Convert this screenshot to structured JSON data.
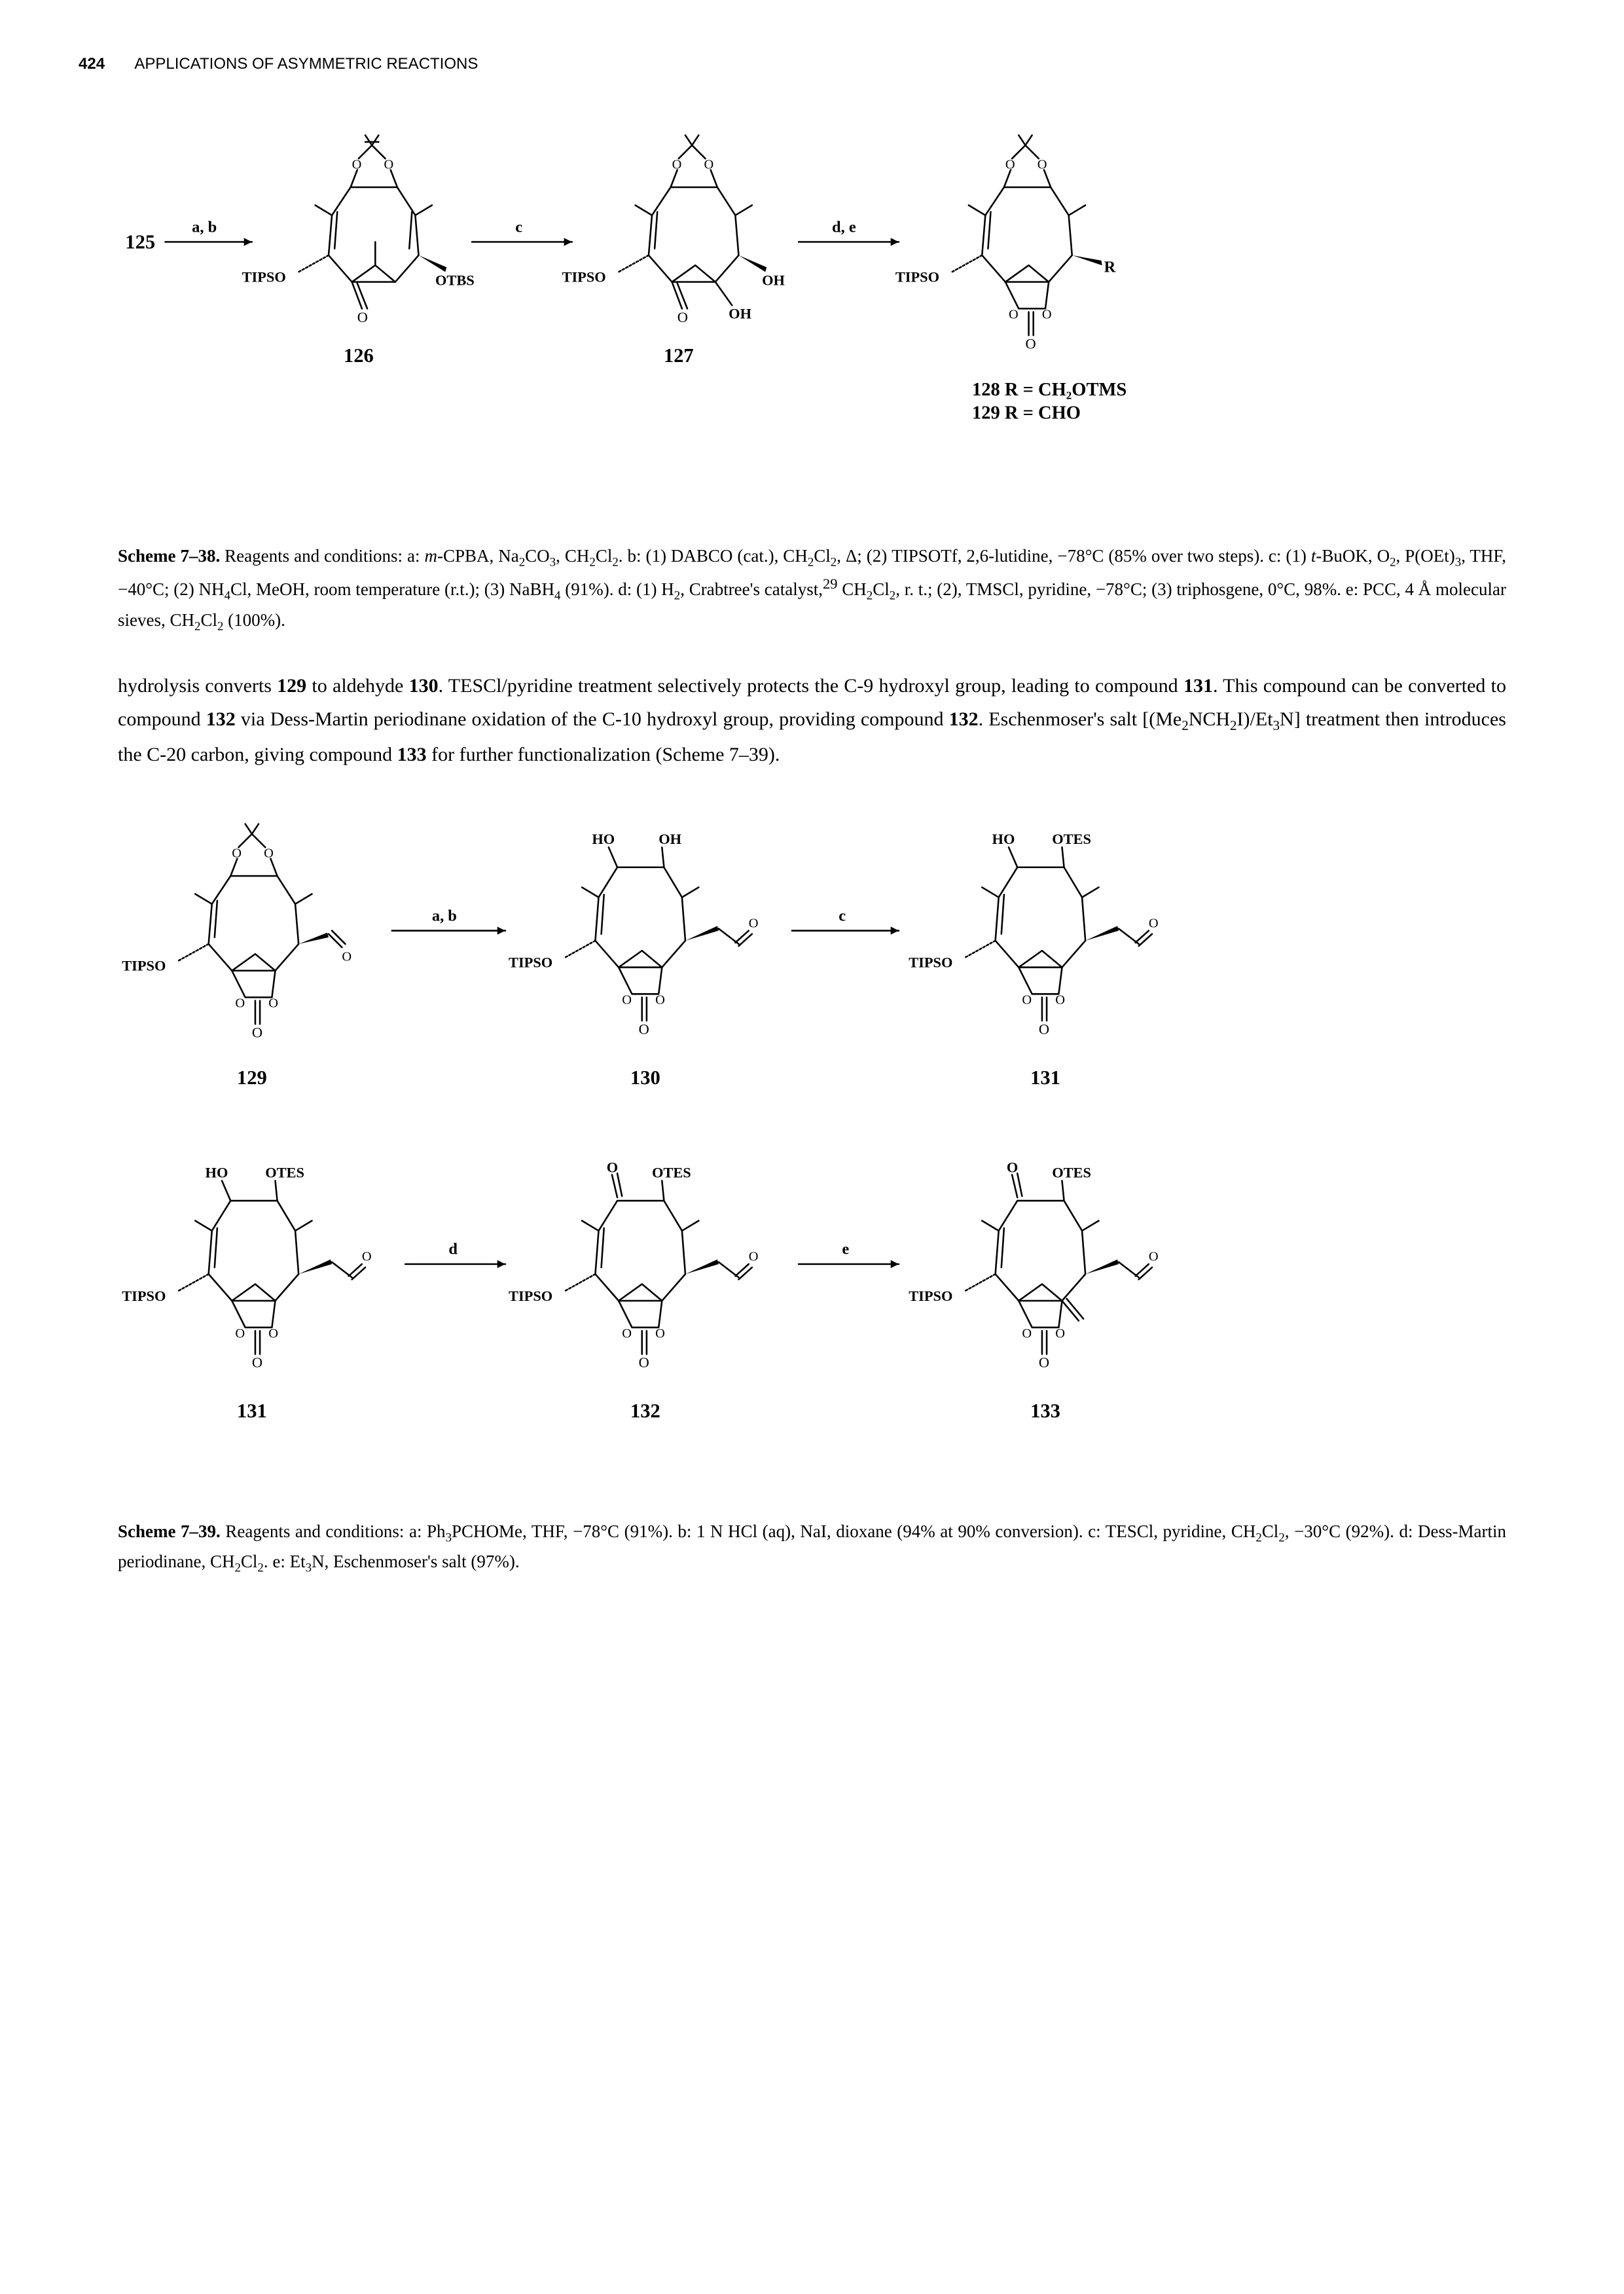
{
  "page_number": "424",
  "running_head": "APPLICATIONS OF ASYMMETRIC REACTIONS",
  "scheme38": {
    "title": "Scheme 7–38.",
    "caption_parts": [
      "Reagents and conditions: a: ",
      "m",
      "-CPBA, Na",
      "2",
      "CO",
      "3",
      ", CH",
      "2",
      "Cl",
      "2",
      ". b: (1) DABCO (cat.), CH",
      "2",
      "Cl",
      "2",
      ", Δ; (2) TIPSOTf, 2,6-lutidine, −78°C (85% over two steps). c: (1) ",
      "t",
      "-BuOK, O",
      "2",
      ", P(OEt)",
      "3",
      ", THF, −40°C; (2) NH",
      "4",
      "Cl, MeOH, room temperature (r.t.); (3) NaBH",
      "4",
      " (91%). d: (1) H",
      "2",
      ", Crabtree's catalyst,",
      "29",
      " CH",
      "2",
      "Cl",
      "2",
      ", r. t.; (2), TMSCl, pyridine, −78°C; (3) triphosgene, 0°C, 98%. e: PCC, 4 Å molecular sieves, CH",
      "2",
      "Cl",
      "2",
      " (100%)."
    ],
    "labels": {
      "start": "125",
      "arrow_ab": "a, b",
      "c126": "126",
      "arrow_c": "c",
      "c127": "127",
      "arrow_de": "d, e",
      "r128": "128 R = CH₂OTMS",
      "r129": "129 R = CHO",
      "tipso": "TIPSO",
      "otbs": "OTBS",
      "oh": "OH",
      "r": "R",
      "o": "O"
    }
  },
  "paragraph": "hydrolysis converts 129 to aldehyde 130. TESCl/pyridine treatment selectively protects the C-9 hydroxyl group, leading to compound 131. This compound can be converted to compound 132 via Dess-Martin periodinane oxidation of the C-10 hydroxyl group, providing compound 132. Eschenmoser's salt [(Me₂NCH₂I)/Et₃N] treatment then introduces the C-20 carbon, giving compound 133 for further functionalization (Scheme 7–39).",
  "scheme39": {
    "title": "Scheme 7–39.",
    "caption": "Reagents and conditions: a: Ph₃PCHOMe, THF, −78°C (91%). b: 1 N HCl (aq), NaI, dioxane (94% at 90% conversion). c: TESCl, pyridine, CH₂Cl₂, −30°C (92%). d: Dess-Martin periodinane, CH₂Cl₂. e: Et₃N, Eschenmoser's salt (97%).",
    "labels": {
      "c129": "129",
      "c130": "130",
      "c131a": "131",
      "c131b": "131",
      "c132": "132",
      "c133": "133",
      "arrow_ab": "a, b",
      "arrow_c": "c",
      "arrow_d": "d",
      "arrow_e": "e",
      "tipso": "TIPSO",
      "ho": "HO",
      "oh": "OH",
      "otes": "OTES",
      "o": "O"
    }
  },
  "colors": {
    "text": "#000000",
    "bg": "#ffffff",
    "stroke": "#000000"
  },
  "stroke_width": 2.5,
  "font": {
    "label_bold_size": 30,
    "label_size": 24,
    "arrow_label_size": 24
  }
}
